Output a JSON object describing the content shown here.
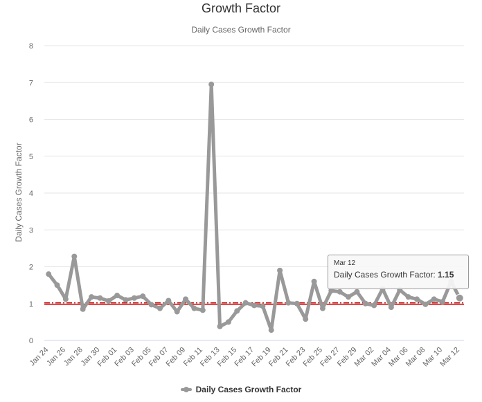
{
  "chart_data": {
    "type": "line",
    "title": "Growth Factor",
    "subtitle": "Daily Cases Growth Factor",
    "ylabel": "Daily Cases Growth Factor",
    "xlabel": "",
    "ylim": [
      0,
      8
    ],
    "yticks": [
      "0",
      "1",
      "2",
      "3",
      "4",
      "5",
      "6",
      "7",
      "8"
    ],
    "grid": "horizontal",
    "categories": [
      "Jan 24",
      "Jan 25",
      "Jan 26",
      "Jan 27",
      "Jan 28",
      "Jan 29",
      "Jan 30",
      "Jan 31",
      "Feb 01",
      "Feb 02",
      "Feb 03",
      "Feb 04",
      "Feb 05",
      "Feb 06",
      "Feb 07",
      "Feb 08",
      "Feb 09",
      "Feb 10",
      "Feb 11",
      "Feb 12",
      "Feb 13",
      "Feb 14",
      "Feb 15",
      "Feb 16",
      "Feb 17",
      "Feb 18",
      "Feb 19",
      "Feb 20",
      "Feb 21",
      "Feb 22",
      "Feb 23",
      "Feb 24",
      "Feb 25",
      "Feb 26",
      "Feb 27",
      "Feb 28",
      "Feb 29",
      "Mar 01",
      "Mar 02",
      "Mar 03",
      "Mar 04",
      "Mar 05",
      "Mar 06",
      "Mar 07",
      "Mar 08",
      "Mar 09",
      "Mar 10",
      "Mar 11",
      "Mar 12"
    ],
    "xtick_labels": [
      "Jan 24",
      "Jan 26",
      "Jan 28",
      "Jan 30",
      "Feb 01",
      "Feb 03",
      "Feb 05",
      "Feb 07",
      "Feb 09",
      "Feb 11",
      "Feb 13",
      "Feb 15",
      "Feb 17",
      "Feb 19",
      "Feb 21",
      "Feb 23",
      "Feb 25",
      "Feb 27",
      "Feb 29",
      "Mar 02",
      "Mar 04",
      "Mar 06",
      "Mar 08",
      "Mar 10",
      "Mar 12"
    ],
    "series": [
      {
        "name": "Daily Cases Growth Factor",
        "color": "#999999",
        "values": [
          1.8,
          1.5,
          1.12,
          2.28,
          0.85,
          1.18,
          1.15,
          1.07,
          1.22,
          1.1,
          1.15,
          1.2,
          0.97,
          0.87,
          1.08,
          0.78,
          1.12,
          0.87,
          0.82,
          6.95,
          0.38,
          0.5,
          0.8,
          1.02,
          0.95,
          0.93,
          0.28,
          1.9,
          1.02,
          1.0,
          0.58,
          1.6,
          0.87,
          1.35,
          1.32,
          1.18,
          1.32,
          1.0,
          0.95,
          1.4,
          0.9,
          1.37,
          1.18,
          1.12,
          0.98,
          1.12,
          1.05,
          1.6,
          1.15
        ]
      }
    ],
    "reference_line": {
      "value": 1.0,
      "color": "#cc0000",
      "style": "dash-dot"
    },
    "legend": {
      "position": "bottom-center",
      "label": "Daily Cases Growth Factor"
    },
    "tooltip": {
      "date": "Mar 12",
      "series_label": "Daily Cases Growth Factor",
      "value": "1.15"
    }
  }
}
